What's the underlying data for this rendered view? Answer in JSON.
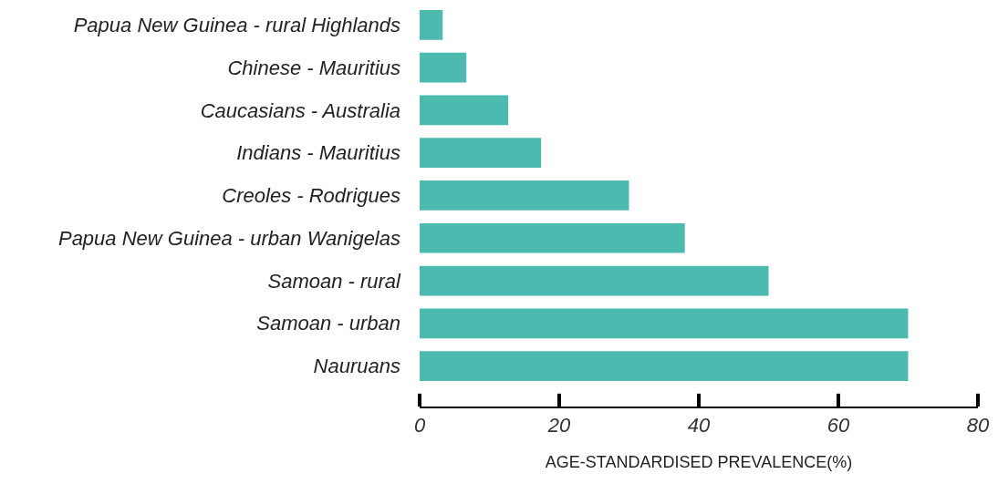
{
  "chart_data": {
    "type": "bar",
    "orientation": "horizontal",
    "xlabel": "AGE-STANDARDISED PREVALENCE(%)",
    "categories": [
      "Papua New Guinea - rural Highlands",
      "Chinese - Mauritius",
      "Caucasians - Australia",
      "Indians - Mauritius",
      "Creoles - Rodrigues",
      "Papua New Guinea - urban Wanigelas",
      "Samoan - rural",
      "Samoan - urban",
      "Nauruans"
    ],
    "values": [
      3.3,
      6.7,
      12.7,
      17.4,
      30,
      38,
      50,
      70,
      70
    ],
    "color": "#4dbab0",
    "xlim": [
      0,
      80
    ],
    "xticks": [
      0,
      20,
      40,
      60,
      80
    ]
  }
}
